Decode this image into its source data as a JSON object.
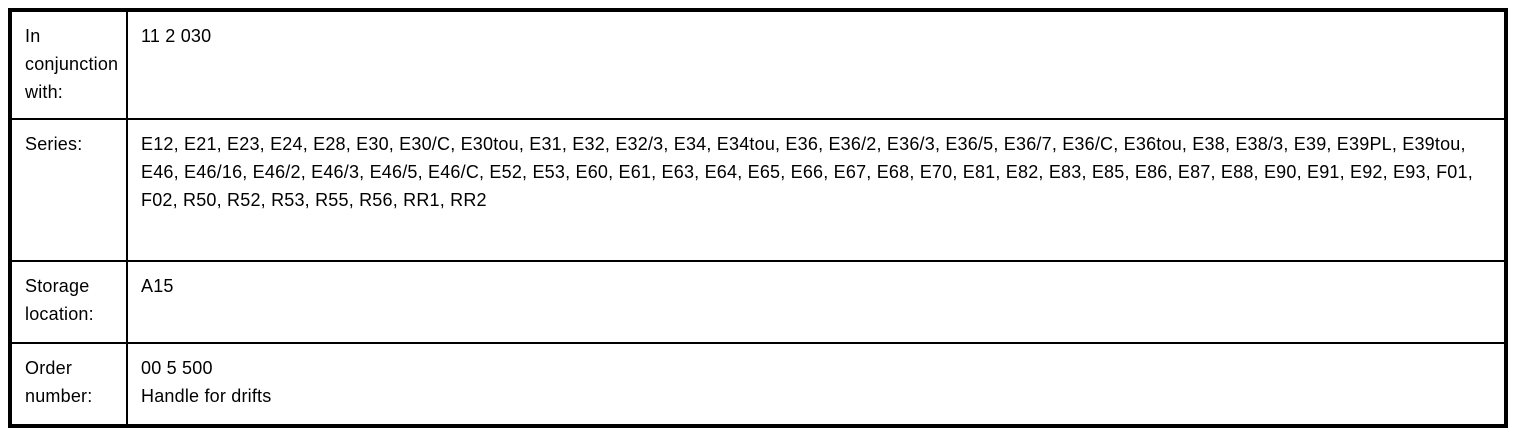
{
  "table": {
    "rows": [
      {
        "label": "In conjunction with:",
        "value": "11 2 030"
      },
      {
        "label": "Series:",
        "value": "E12, E21, E23, E24, E28, E30, E30/C, E30tou, E31, E32, E32/3, E34, E34tou, E36, E36/2, E36/3, E36/5, E36/7, E36/C, E36tou, E38, E38/3, E39, E39PL, E39tou, E46, E46/16, E46/2, E46/3, E46/5, E46/C, E52, E53, E60, E61, E63, E64, E65, E66, E67, E68, E70, E81, E82, E83, E85, E86, E87, E88, E90, E91, E92, E93, F01, F02, R50, R52, R53, R55, R56, RR1, RR2"
      },
      {
        "label": "Storage location:",
        "value": "A15"
      },
      {
        "label": "Order number:",
        "value": "00 5 500",
        "description": "Handle for drifts"
      }
    ]
  }
}
